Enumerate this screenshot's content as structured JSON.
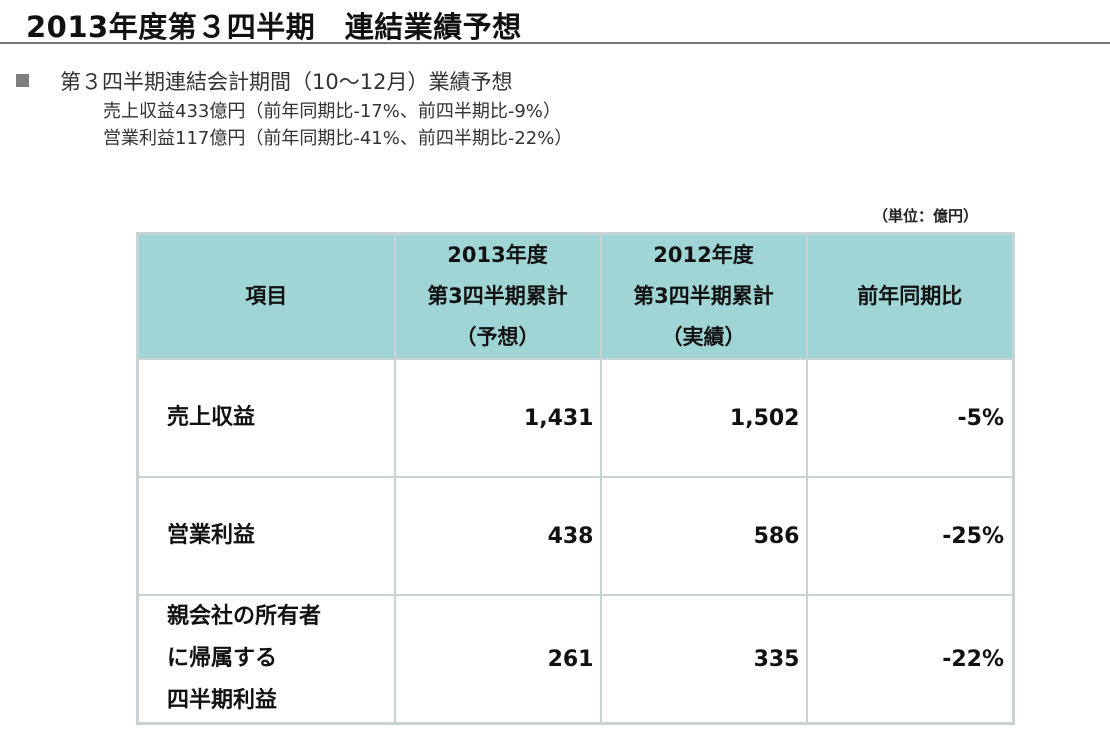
{
  "title": "2013年度第３四半期　連結業績予想",
  "bullet": {
    "heading": "第３四半期連結会計期間（10～12月）業績予想",
    "lines": [
      "売上収益433億円（前年同期比-17%、前四半期比-9%）",
      "営業利益117億円（前年同期比-41%、前四半期比-22%）"
    ]
  },
  "table": {
    "unit_note": "（単位：億円）",
    "headers": {
      "item": "項目",
      "forecast": [
        "2013年度",
        "第3四半期累計",
        "（予想）"
      ],
      "actual": [
        "2012年度",
        "第3四半期累計",
        "（実績）"
      ],
      "yoy": "前年同期比"
    },
    "rows": [
      {
        "label": [
          "売上収益"
        ],
        "forecast": "1,431",
        "actual": "1,502",
        "yoy": "-5%"
      },
      {
        "label": [
          "営業利益"
        ],
        "forecast": "438",
        "actual": "586",
        "yoy": "-25%"
      },
      {
        "label": [
          "親会社の所有者",
          "に帰属する",
          "四半期利益"
        ],
        "forecast": "261",
        "actual": "335",
        "yoy": "-22%"
      }
    ]
  },
  "colors": {
    "header_bg": "#9fd6d5",
    "border": "#c9d3d6",
    "bullet_square": "#7f7f7f",
    "title_rule": "#777777"
  }
}
